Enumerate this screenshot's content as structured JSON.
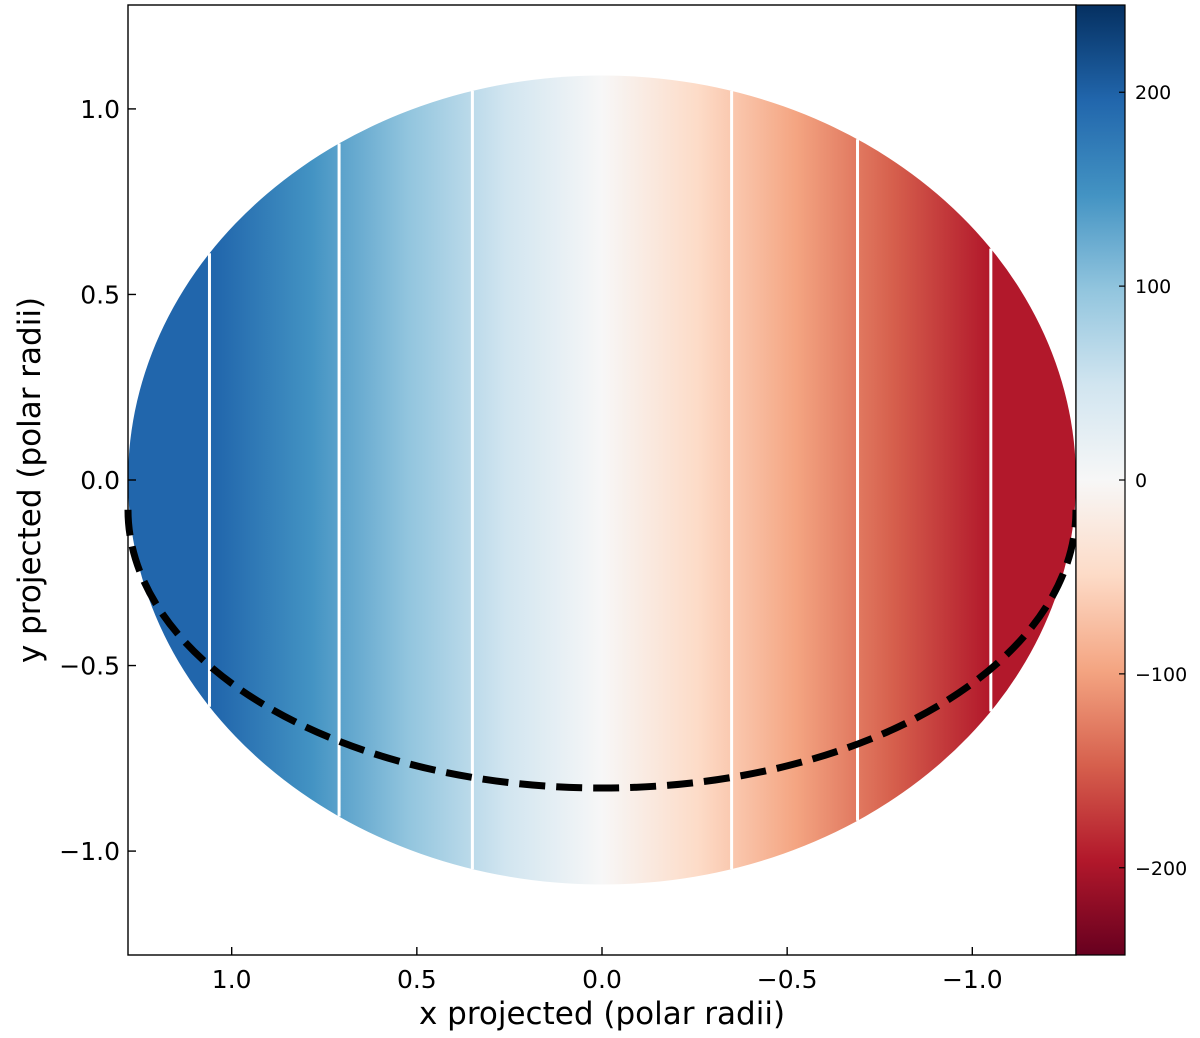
{
  "chart_data": {
    "type": "heatmap",
    "title": "",
    "xlabel": "x projected (polar radii)",
    "ylabel": "y projected (polar radii)",
    "xlim": [
      1.28,
      -1.28
    ],
    "ylim": [
      -1.28,
      1.28
    ],
    "x_inverted": true,
    "x_ticks": [
      1.0,
      0.5,
      0.0,
      -0.5,
      -1.0
    ],
    "x_tick_labels": [
      "1.0",
      "0.5",
      "0.0",
      "−0.5",
      "−1.0"
    ],
    "y_ticks": [
      1.0,
      0.5,
      0.0,
      -0.5,
      -1.0
    ],
    "y_tick_labels": [
      "1.0",
      "0.5",
      "0.0",
      "−0.5",
      "−1.0"
    ],
    "grid": false,
    "disk": {
      "equatorial_radius": 1.28,
      "polar_radius": 1.09,
      "field": "linear in x",
      "value_at_x_max": 240,
      "value_at_x_min": -240
    },
    "contour_x": [
      1.06,
      0.71,
      0.35,
      -0.35,
      -0.69,
      -1.05
    ],
    "dashed_curve": {
      "description": "equator projection",
      "x_range": [
        1.28,
        -1.28
      ],
      "y_at_center": -0.83,
      "y_at_edge": -0.08
    },
    "colorbar": {
      "vmin": -245,
      "vmax": 245,
      "ticks": [
        200,
        100,
        0,
        -100,
        -200
      ],
      "tick_labels": [
        "200",
        "100",
        "0",
        "−100",
        "−200"
      ],
      "colormap": [
        "#67001f",
        "#b2182b",
        "#d6604d",
        "#f4a582",
        "#fddbc7",
        "#f7f7f7",
        "#d1e5f0",
        "#92c5de",
        "#4393c3",
        "#2166ac",
        "#053061"
      ]
    }
  }
}
